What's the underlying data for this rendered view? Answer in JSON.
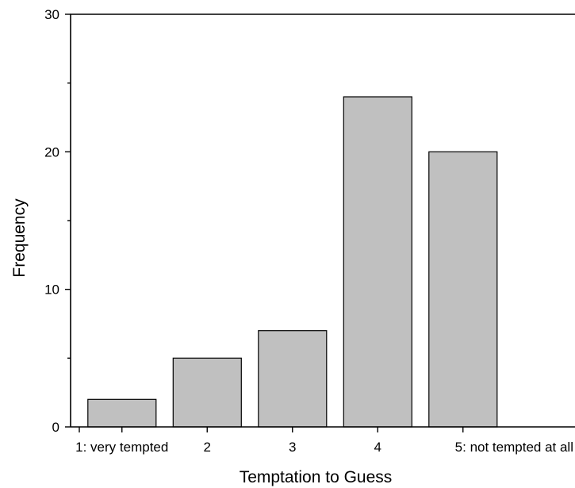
{
  "chart_data": {
    "type": "bar",
    "categories": [
      "1: very tempted",
      "2",
      "3",
      "4",
      "5: not tempted at all"
    ],
    "values": [
      2,
      5,
      7,
      24,
      20
    ],
    "xlabel": "Temptation to Guess",
    "ylabel": "Frequency",
    "ylim": [
      0,
      30
    ],
    "yticks": [
      0,
      10,
      20,
      30
    ],
    "grid": false,
    "colors": {
      "bar_fill": "#c0c0c0",
      "bar_stroke": "#000000",
      "axis": "#000000"
    }
  }
}
